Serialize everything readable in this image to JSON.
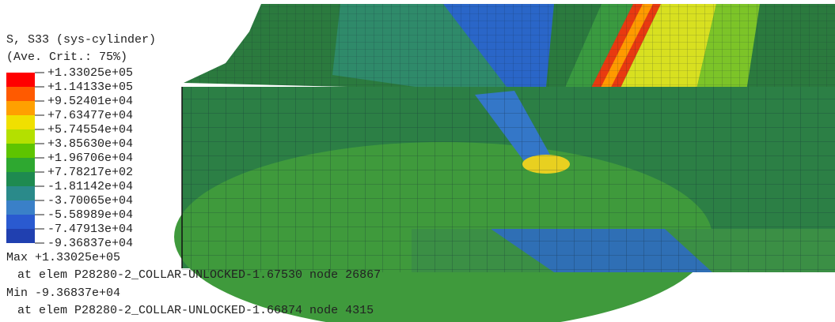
{
  "header": {
    "title": "S, S33 (sys-cylinder)",
    "subtitle": "(Ave. Crit.: 75%)"
  },
  "legend": {
    "labels": [
      "+1.33025e+05",
      "+1.14133e+05",
      "+9.52401e+04",
      "+7.63477e+04",
      "+5.74554e+04",
      "+3.85630e+04",
      "+1.96706e+04",
      "+7.78217e+02",
      "-1.81142e+04",
      "-3.70065e+04",
      "-5.58989e+04",
      "-7.47913e+04",
      "-9.36837e+04"
    ]
  },
  "extremes": {
    "max": "Max +1.33025e+05",
    "max_location": "at elem P28280-2_COLLAR-UNLOCKED-1.67530 node 26867",
    "min": "Min -9.36837e+04",
    "min_location": "at elem P28280-2_COLLAR-UNLOCKED-1.66874 node 4315"
  }
}
